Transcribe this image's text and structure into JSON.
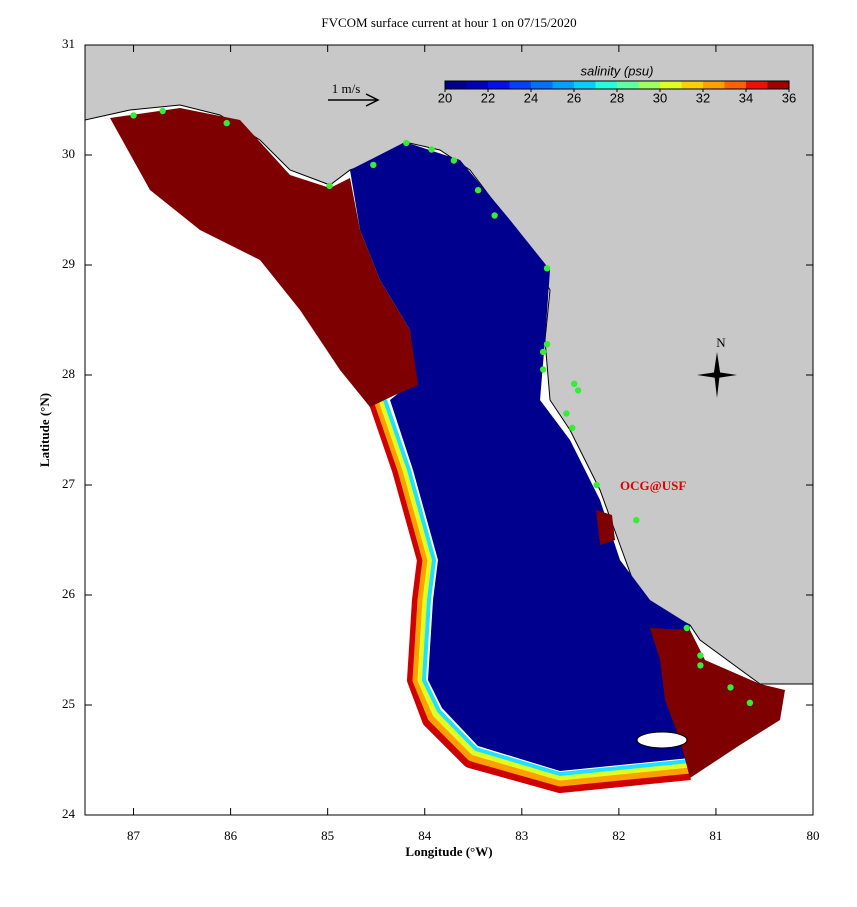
{
  "title": "FVCOM surface current at hour 1 on 07/15/2020",
  "x_axis": {
    "label": "Longitude (°W)",
    "lim": [
      87.5,
      80
    ],
    "ticks": [
      87,
      86,
      85,
      84,
      83,
      82,
      81,
      80
    ]
  },
  "y_axis": {
    "label": "Latitude (°N)",
    "lim": [
      24,
      31
    ],
    "ticks": [
      24,
      25,
      26,
      27,
      28,
      29,
      30,
      31
    ]
  },
  "colorbar": {
    "label": "salinity (psu)",
    "lim": [
      20,
      36
    ],
    "ticks": [
      20,
      22,
      24,
      26,
      28,
      30,
      32,
      34,
      36
    ],
    "colors": [
      "#00008f",
      "#0000bf",
      "#0010ef",
      "#0040ff",
      "#0070ff",
      "#00a0ff",
      "#00d0ff",
      "#20ffdf",
      "#60ffa0",
      "#a0ff60",
      "#dfff20",
      "#ffd000",
      "#ffa000",
      "#ff6000",
      "#ef1000",
      "#9f0000"
    ]
  },
  "scale_label": "1 m/s",
  "compass": "N",
  "annotation": "OCG@USF",
  "stations": {
    "color": "#33ee33",
    "lon": [
      87.0,
      86.7,
      86.04,
      84.98,
      84.53,
      84.19,
      83.93,
      83.7,
      83.45,
      83.28,
      82.74,
      82.74,
      82.78,
      82.78,
      82.46,
      82.42,
      82.54,
      82.48,
      82.23,
      81.82,
      81.3,
      81.16,
      81.16,
      80.85,
      80.65
    ],
    "lat": [
      30.36,
      30.4,
      30.29,
      29.72,
      29.91,
      30.11,
      30.05,
      29.95,
      29.68,
      29.45,
      28.97,
      28.28,
      28.21,
      28.05,
      27.92,
      27.86,
      27.65,
      27.52,
      27.0,
      26.68,
      25.7,
      25.45,
      25.36,
      25.16,
      25.02
    ]
  }
}
